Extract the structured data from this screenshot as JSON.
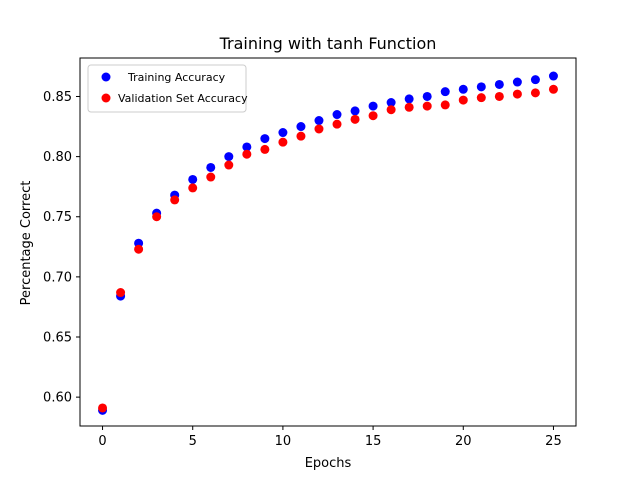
{
  "chart_data": {
    "type": "scatter",
    "title": "Training with tanh Function",
    "xlabel": "Epochs",
    "ylabel": "Percentage Correct",
    "xlim": [
      -1.25,
      26.25
    ],
    "ylim": [
      0.576,
      0.882
    ],
    "xticks": [
      0,
      5,
      10,
      15,
      20,
      25
    ],
    "yticks": [
      0.6,
      0.65,
      0.7,
      0.75,
      0.8,
      0.85
    ],
    "xtick_labels": [
      "0",
      "5",
      "10",
      "15",
      "20",
      "25"
    ],
    "ytick_labels": [
      "0.60",
      "0.65",
      "0.70",
      "0.75",
      "0.80",
      "0.85"
    ],
    "grid": false,
    "legend_position": "top-left",
    "x": [
      0,
      1,
      2,
      3,
      4,
      5,
      6,
      7,
      8,
      9,
      10,
      11,
      12,
      13,
      14,
      15,
      16,
      17,
      18,
      19,
      20,
      21,
      22,
      23,
      24,
      25
    ],
    "series": [
      {
        "name": "Training Accuracy",
        "color": "#0000ff",
        "values": [
          0.589,
          0.684,
          0.728,
          0.753,
          0.768,
          0.781,
          0.791,
          0.8,
          0.808,
          0.815,
          0.82,
          0.825,
          0.83,
          0.835,
          0.838,
          0.842,
          0.845,
          0.848,
          0.85,
          0.854,
          0.856,
          0.858,
          0.86,
          0.862,
          0.864,
          0.867
        ]
      },
      {
        "name": "Validation Set Accuracy",
        "color": "#ff0000",
        "values": [
          0.591,
          0.687,
          0.723,
          0.75,
          0.764,
          0.774,
          0.783,
          0.793,
          0.802,
          0.806,
          0.812,
          0.817,
          0.823,
          0.827,
          0.831,
          0.834,
          0.839,
          0.841,
          0.842,
          0.843,
          0.847,
          0.849,
          0.85,
          0.852,
          0.853,
          0.856
        ]
      }
    ]
  }
}
